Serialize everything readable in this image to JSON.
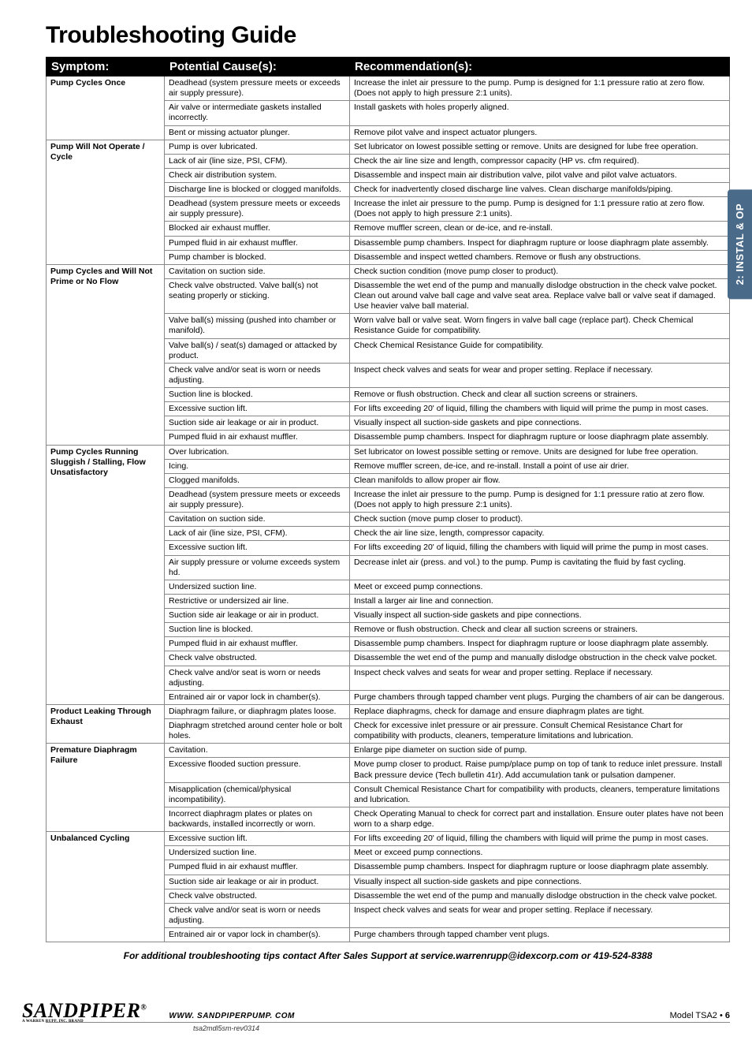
{
  "title": "Troubleshooting Guide",
  "side_tab": "2: INSTAL & OP",
  "columns": [
    "Symptom:",
    "Potential Cause(s):",
    "Recommendation(s):"
  ],
  "footnote": "For additional troubleshooting tips contact After Sales Support at service.warrenrupp@idexcorp.com or 419-524-8388",
  "footer": {
    "logo": "SANDPIPER",
    "logo_mark": "®",
    "logo_sub": "A WARREN RUPP, INC. BRAND",
    "url": "WWW. SANDPIPERPUMP. COM",
    "model_label": "Model TSA2 • ",
    "page_num": "6",
    "rev": "tsa2mdl5sm-rev0314"
  },
  "groups": [
    {
      "symptom": "Pump Cycles Once",
      "rows": [
        {
          "cause": "Deadhead (system pressure meets or exceeds air supply pressure).",
          "rec": "Increase the inlet air pressure to the pump. Pump is designed for 1:1 pressure ratio at zero flow. (Does not apply to high pressure 2:1 units)."
        },
        {
          "cause": "Air valve or intermediate gaskets installed incorrectly.",
          "rec": "Install gaskets with holes properly aligned."
        },
        {
          "cause": "Bent or missing actuator plunger.",
          "rec": "Remove pilot valve and inspect actuator plungers."
        }
      ]
    },
    {
      "symptom": "Pump Will Not Operate / Cycle",
      "rows": [
        {
          "cause": "Pump is over lubricated.",
          "rec": "Set lubricator on lowest possible setting or remove. Units are designed for lube free operation."
        },
        {
          "cause": "Lack of air (line size, PSI, CFM).",
          "rec": "Check the air line size and length, compressor capacity (HP vs. cfm required)."
        },
        {
          "cause": "Check air distribution system.",
          "rec": "Disassemble and inspect main air distribution valve, pilot valve and pilot valve actuators."
        },
        {
          "cause": "Discharge line is blocked or clogged manifolds.",
          "rec": "Check for inadvertently closed discharge line valves. Clean discharge manifolds/piping."
        },
        {
          "cause": "Deadhead (system pressure meets or exceeds air supply pressure).",
          "rec": "Increase the inlet air pressure to the pump. Pump is designed for 1:1 pressure ratio at zero flow. (Does not apply to high pressure 2:1 units)."
        },
        {
          "cause": "Blocked air exhaust muffler.",
          "rec": "Remove muffler screen, clean or de-ice, and re-install."
        },
        {
          "cause": "Pumped fluid in air exhaust muffler.",
          "rec": "Disassemble pump chambers. Inspect for diaphragm rupture or loose diaphragm plate assembly."
        },
        {
          "cause": "Pump chamber is blocked.",
          "rec": "Disassemble and inspect wetted chambers. Remove or flush any obstructions."
        }
      ]
    },
    {
      "symptom": "Pump Cycles and Will Not Prime or No Flow",
      "rows": [
        {
          "cause": "Cavitation on suction side.",
          "rec": "Check suction condition (move pump closer to product)."
        },
        {
          "cause": "Check valve obstructed. Valve ball(s) not seating properly or sticking.",
          "rec": "Disassemble the wet end of the pump and manually dislodge obstruction in the check valve pocket. Clean out around valve ball cage and valve seat area. Replace valve ball or valve seat if damaged. Use heavier valve ball material."
        },
        {
          "cause": "Valve ball(s) missing (pushed into chamber or manifold).",
          "rec": "Worn valve ball or valve seat. Worn fingers in valve ball cage (replace part). Check Chemical Resistance Guide for compatibility."
        },
        {
          "cause": "Valve ball(s) / seat(s) damaged or attacked by product.",
          "rec": "Check Chemical Resistance Guide for compatibility."
        },
        {
          "cause": "Check valve and/or seat is worn or needs adjusting.",
          "rec": "Inspect check valves and seats for wear and proper setting. Replace if necessary."
        },
        {
          "cause": "Suction line is blocked.",
          "rec": "Remove or flush obstruction. Check and clear all suction screens or strainers."
        },
        {
          "cause": "Excessive suction lift.",
          "rec": "For lifts exceeding 20' of liquid, filling the chambers with liquid will prime the pump in most cases."
        },
        {
          "cause": "Suction side air leakage or air in product.",
          "rec": "Visually inspect all suction-side gaskets and pipe connections."
        },
        {
          "cause": "Pumped fluid in air exhaust muffler.",
          "rec": "Disassemble pump chambers. Inspect for diaphragm rupture or loose diaphragm plate assembly."
        }
      ]
    },
    {
      "symptom": "Pump Cycles Running Sluggish / Stalling, Flow Unsatisfactory",
      "rows": [
        {
          "cause": "Over lubrication.",
          "rec": "Set lubricator on lowest possible setting or remove. Units are designed for lube free operation."
        },
        {
          "cause": "Icing.",
          "rec": "Remove muffler screen, de-ice, and re-install. Install a point of use air drier."
        },
        {
          "cause": "Clogged manifolds.",
          "rec": "Clean manifolds to allow proper air flow."
        },
        {
          "cause": "Deadhead (system pressure meets or exceeds air supply pressure).",
          "rec": "Increase the inlet air pressure to the pump. Pump is designed for 1:1 pressure ratio at zero flow. (Does not apply to high pressure 2:1 units)."
        },
        {
          "cause": "Cavitation on suction side.",
          "rec": "Check suction (move pump closer to product)."
        },
        {
          "cause": "Lack of air (line size, PSI, CFM).",
          "rec": "Check the air line size, length, compressor capacity."
        },
        {
          "cause": "Excessive suction lift.",
          "rec": "For lifts exceeding 20' of liquid, filling the chambers with liquid will prime the pump in most cases."
        },
        {
          "cause": "Air supply pressure or volume exceeds system hd.",
          "rec": "Decrease inlet air (press. and vol.) to the pump. Pump is cavitating the fluid by fast cycling."
        },
        {
          "cause": "Undersized suction line.",
          "rec": "Meet or exceed pump connections."
        },
        {
          "cause": "Restrictive or undersized air line.",
          "rec": "Install a larger air line and connection."
        },
        {
          "cause": "Suction side air leakage or air in product.",
          "rec": "Visually inspect all suction-side gaskets and pipe connections."
        },
        {
          "cause": "Suction line is blocked.",
          "rec": "Remove or flush obstruction. Check and clear all suction screens or strainers."
        },
        {
          "cause": "Pumped fluid in air exhaust muffler.",
          "rec": "Disassemble pump chambers. Inspect for diaphragm rupture or loose diaphragm plate assembly."
        },
        {
          "cause": "Check valve obstructed.",
          "rec": "Disassemble the wet end of the pump and manually dislodge obstruction in the check valve pocket."
        },
        {
          "cause": "Check valve and/or seat is worn or needs adjusting.",
          "rec": "Inspect check valves and seats for wear and proper setting. Replace if necessary."
        },
        {
          "cause": "Entrained air or vapor lock in chamber(s).",
          "rec": "Purge chambers through tapped chamber vent plugs. Purging the chambers of air can be dangerous."
        }
      ]
    },
    {
      "symptom": "Product Leaking Through Exhaust",
      "rows": [
        {
          "cause": "Diaphragm failure, or diaphragm plates loose.",
          "rec": "Replace diaphragms, check for damage and ensure diaphragm plates are tight."
        },
        {
          "cause": "Diaphragm stretched around center hole or bolt holes.",
          "rec": "Check for excessive inlet pressure or air pressure. Consult Chemical Resistance Chart for compatibility with products, cleaners, temperature limitations and lubrication."
        }
      ]
    },
    {
      "symptom": "Premature Diaphragm Failure",
      "rows": [
        {
          "cause": "Cavitation.",
          "rec": "Enlarge pipe diameter on suction side of pump."
        },
        {
          "cause": "Excessive flooded suction pressure.",
          "rec": "Move pump closer to product. Raise pump/place pump on top of tank to reduce inlet pressure. Install Back pressure device (Tech bulletin 41r). Add accumulation tank or pulsation dampener."
        },
        {
          "cause": "Misapplication (chemical/physical incompatibility).",
          "rec": "Consult Chemical Resistance Chart for compatibility with products, cleaners, temperature limitations and lubrication."
        },
        {
          "cause": "Incorrect diaphragm plates or plates on backwards, installed incorrectly or worn.",
          "rec": "Check Operating Manual to check for correct part and installation. Ensure outer plates have not been worn to a sharp edge."
        }
      ]
    },
    {
      "symptom": "Unbalanced Cycling",
      "rows": [
        {
          "cause": "Excessive suction lift.",
          "rec": "For lifts exceeding 20' of liquid, filling the chambers with liquid will prime the pump in most cases."
        },
        {
          "cause": "Undersized suction line.",
          "rec": "Meet or exceed pump connections."
        },
        {
          "cause": "Pumped fluid in air exhaust muffler.",
          "rec": "Disassemble pump chambers. Inspect for diaphragm rupture or loose diaphragm plate assembly."
        },
        {
          "cause": "Suction side air leakage or air in product.",
          "rec": "Visually inspect all suction-side gaskets and pipe connections."
        },
        {
          "cause": "Check valve obstructed.",
          "rec": "Disassemble the wet end of the pump and manually dislodge obstruction in the check valve pocket."
        },
        {
          "cause": "Check valve and/or seat is worn or needs adjusting.",
          "rec": "Inspect check valves and seats for wear and proper setting. Replace if necessary."
        },
        {
          "cause": "Entrained air or vapor lock in chamber(s).",
          "rec": "Purge chambers through tapped chamber vent plugs."
        }
      ]
    }
  ]
}
